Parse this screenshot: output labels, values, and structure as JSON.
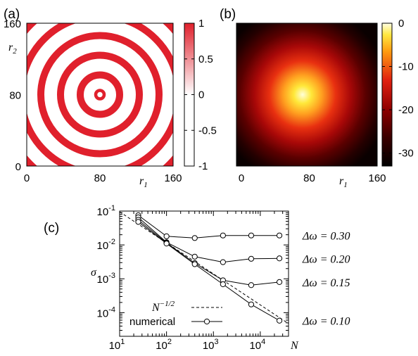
{
  "chart_data": [
    {
      "type": "heatmap",
      "panel_label": "(a)",
      "xlabel": "r",
      "xlabel_sub": "1",
      "ylabel": "r",
      "ylabel_sub": "2",
      "xlim": [
        0,
        160
      ],
      "ylim": [
        0,
        160
      ],
      "x_ticks": [
        "0",
        "80",
        "160"
      ],
      "y_ticks": [
        "160",
        "80",
        "0"
      ],
      "colorbar_ticks": [
        "1",
        "0.5",
        "0",
        "-0.5",
        "-1"
      ],
      "colorbar_range": [
        -1,
        1
      ],
      "colormap": [
        "#ffffff",
        "#e0202c"
      ],
      "center": [
        80,
        80
      ],
      "pattern": "concentric rings, period ~28 cells"
    },
    {
      "type": "heatmap",
      "panel_label": "(b)",
      "xlabel": "r",
      "xlabel_sub": "1",
      "xlim": [
        0,
        160
      ],
      "ylim": [
        0,
        160
      ],
      "x_ticks": [
        "0",
        "80",
        "160"
      ],
      "colorbar_ticks": [
        "0",
        "-10",
        "-20",
        "-30"
      ],
      "colorbar_range": [
        -33,
        0
      ],
      "colormap": [
        "#000000",
        "#700000",
        "#d01010",
        "#ff7000",
        "#ffe000",
        "#ffffe0"
      ],
      "center": [
        80,
        80
      ],
      "pattern": "radial peak at center"
    },
    {
      "type": "line",
      "panel_label": "(c)",
      "xlabel": "N",
      "ylabel": "σ",
      "xscale": "log",
      "yscale": "log",
      "xlim": [
        10,
        40000
      ],
      "ylim": [
        2e-05,
        0.1
      ],
      "x_ticks": [
        {
          "base": "10",
          "exp": "1"
        },
        {
          "base": "10",
          "exp": "2"
        },
        {
          "base": "10",
          "exp": "3"
        },
        {
          "base": "10",
          "exp": "4"
        }
      ],
      "y_ticks": [
        {
          "base": "10",
          "exp": "-1"
        },
        {
          "base": "10",
          "exp": "-2"
        },
        {
          "base": "10",
          "exp": "-3"
        },
        {
          "base": "10",
          "exp": "-4"
        }
      ],
      "x": [
        25,
        100,
        400,
        1600,
        6400,
        25600
      ],
      "series": [
        {
          "name": "Δω = 0.30",
          "values": [
            0.075,
            0.018,
            0.016,
            0.019,
            0.019,
            0.019
          ]
        },
        {
          "name": "Δω = 0.20",
          "values": [
            0.065,
            0.012,
            0.0045,
            0.0031,
            0.0039,
            0.004
          ]
        },
        {
          "name": "Δω = 0.15",
          "values": [
            0.055,
            0.0115,
            0.0029,
            0.0009,
            0.00065,
            0.0008
          ]
        },
        {
          "name": "Δω = 0.10",
          "values": [
            0.048,
            0.011,
            0.0027,
            0.00069,
            0.000175,
            5.8e-05
          ]
        }
      ],
      "reference": {
        "name": "N^{-1/2}",
        "label_base": "N",
        "label_exp": "−1/2",
        "line_style": "dashed",
        "x": [
          10,
          40000
        ],
        "values": [
          0.095,
          4.75e-05
        ]
      },
      "legend": {
        "position": "bottom-left",
        "numerical_label": "numerical"
      },
      "series_labels": [
        {
          "text": "Δω = 0.30"
        },
        {
          "text": "Δω = 0.20"
        },
        {
          "text": "Δω = 0.15"
        },
        {
          "text": "Δω = 0.10"
        }
      ]
    }
  ]
}
